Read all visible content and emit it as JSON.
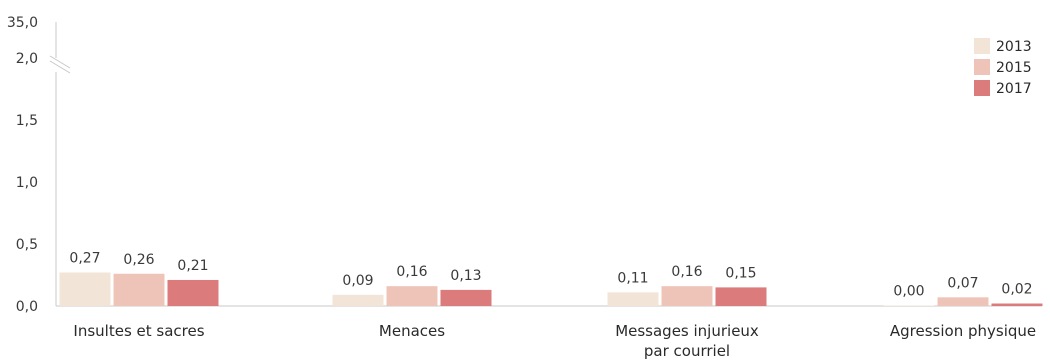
{
  "chart_data": {
    "type": "bar",
    "title": "",
    "xlabel": "",
    "ylabel": "",
    "categories": [
      [
        "Insultes et sacres"
      ],
      [
        "Menaces"
      ],
      [
        "Messages injurieux",
        "par courriel"
      ],
      [
        "Agression physique"
      ]
    ],
    "series": [
      {
        "name": "2013",
        "color": "#f2e4d6",
        "values": [
          0.27,
          0.09,
          0.11,
          0.0
        ],
        "labels": [
          "0,27",
          "0,09",
          "0,11",
          "0,00"
        ]
      },
      {
        "name": "2015",
        "color": "#efc4b8",
        "values": [
          0.26,
          0.16,
          0.16,
          0.07
        ],
        "labels": [
          "0,26",
          "0,16",
          "0,16",
          "0,07"
        ]
      },
      {
        "name": "2017",
        "color": "#db7b7b",
        "values": [
          0.21,
          0.13,
          0.15,
          0.02
        ],
        "labels": [
          "0,21",
          "0,13",
          "0,15",
          "0,02"
        ]
      }
    ],
    "y_ticks": [
      {
        "value": 0.0,
        "label": "0,0"
      },
      {
        "value": 0.5,
        "label": "0,5"
      },
      {
        "value": 1.0,
        "label": "1,0"
      },
      {
        "value": 1.5,
        "label": "1,5"
      },
      {
        "value": 2.0,
        "label": "2,0"
      },
      {
        "value": 35.0,
        "label": "35,0"
      }
    ],
    "ylim": [
      0,
      35.0
    ],
    "axis_break": [
      2.0,
      35.0
    ],
    "grid": false,
    "legend_position": "top-right"
  }
}
